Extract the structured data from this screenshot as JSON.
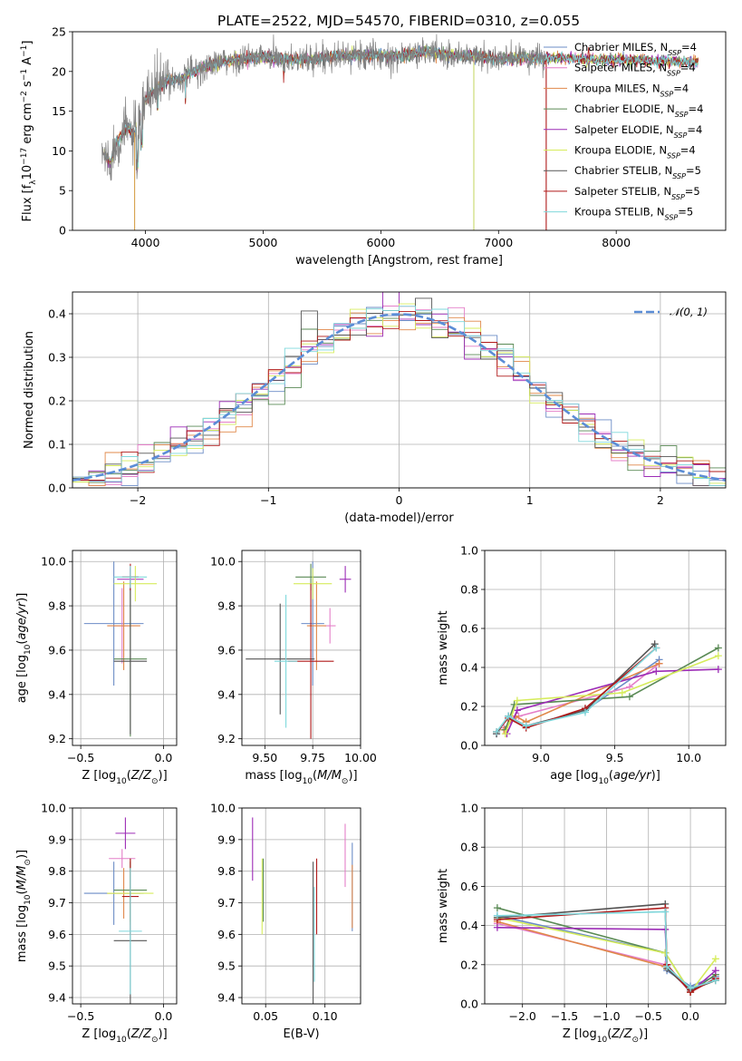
{
  "title": "PLATE=2522, MJD=54570, FIBERID=0310, z=0.055",
  "series": [
    {
      "name": "Chabrier MILES, N_SSP=4",
      "label_main": "Chabrier MILES, N",
      "label_sub": "SSP",
      "label_tail": "=4",
      "color": "#6b8cc6"
    },
    {
      "name": "Salpeter MILES, N_SSP=4",
      "label_main": "Salpeter MILES, N",
      "label_sub": "SSP",
      "label_tail": "=4",
      "color": "#e47fc8"
    },
    {
      "name": "Kroupa MILES, N_SSP=4",
      "label_main": "Kroupa MILES, N",
      "label_sub": "SSP",
      "label_tail": "=4",
      "color": "#e0884a"
    },
    {
      "name": "Chabrier ELODIE, N_SSP=4",
      "label_main": "Chabrier ELODIE, N",
      "label_sub": "SSP",
      "label_tail": "=4",
      "color": "#5a8a55"
    },
    {
      "name": "Salpeter ELODIE, N_SSP=4",
      "label_main": "Salpeter ELODIE, N",
      "label_sub": "SSP",
      "label_tail": "=4",
      "color": "#9c2cb6"
    },
    {
      "name": "Kroupa ELODIE, N_SSP=4",
      "label_main": "Kroupa ELODIE, N",
      "label_sub": "SSP",
      "label_tail": "=4",
      "color": "#d6ec5c"
    },
    {
      "name": "Chabrier STELIB, N_SSP=5",
      "label_main": "Chabrier STELIB, N",
      "label_sub": "SSP",
      "label_tail": "=5",
      "color": "#555555"
    },
    {
      "name": "Salpeter STELIB, N_SSP=5",
      "label_main": "Salpeter STELIB, N",
      "label_sub": "SSP",
      "label_tail": "=5",
      "color": "#b01a1a"
    },
    {
      "name": "Kroupa STELIB, N_SSP=5",
      "label_main": "Kroupa STELIB, N",
      "label_sub": "SSP",
      "label_tail": "=5",
      "color": "#7fd8dc"
    }
  ],
  "chart_data": [
    {
      "type": "line",
      "title": "PLATE=2522, MJD=54570, FIBERID=0310, z=0.055",
      "xlabel": "wavelength [Angstrom, rest frame]",
      "ylabel": "Flux [f_λ 10^-17 erg cm^-2 s^-1 A^-1]",
      "xlim": [
        3380,
        8930
      ],
      "ylim": [
        0,
        25
      ],
      "xticks": [
        "4000",
        "5000",
        "6000",
        "7000",
        "8000"
      ],
      "yticks": [
        "0",
        "5",
        "10",
        "15",
        "20",
        "25"
      ],
      "data_spectrum": {
        "color": "#808080",
        "x": [
          3650,
          3700,
          3750,
          3800,
          3850,
          3900,
          3950,
          4000,
          4100,
          4200,
          4300,
          4400,
          4500,
          4600,
          4800,
          5000,
          5200,
          5400,
          5600,
          5800,
          6000,
          6200,
          6400,
          6600,
          6800,
          7000,
          7200,
          7400
        ],
        "y": [
          9.5,
          8.5,
          11,
          12,
          13,
          12,
          14,
          16.5,
          18,
          19,
          19,
          20,
          20.5,
          21,
          21.5,
          21.8,
          21.5,
          21.5,
          22,
          22,
          22,
          22,
          22.5,
          22,
          22,
          21.5,
          21.8,
          21.5
        ]
      },
      "model_extent_angstrom": [
        3650,
        8700
      ]
    },
    {
      "type": "line",
      "xlabel": "(data-model)/error",
      "ylabel": "Normed distribution",
      "xlim": [
        -2.5,
        2.5
      ],
      "ylim": [
        0,
        0.45
      ],
      "xticks": [
        "−2",
        "−1",
        "0",
        "1",
        "2"
      ],
      "yticks": [
        "0.0",
        "0.1",
        "0.2",
        "0.3",
        "0.4"
      ],
      "reference_curve": {
        "name": "𝒩(0, 1)",
        "label": "𝒩(0, 1)",
        "mean": 0,
        "sigma": 1,
        "color": "#5b8dd6"
      },
      "histogram_bin_width": 0.125,
      "histogram_range": [
        -2.5,
        2.5
      ]
    },
    {
      "type": "scatter",
      "xlabel": "Z [log10(Z/Z⊙)]",
      "ylabel": "age  [log10(age/yr)]",
      "xlim": [
        -0.55,
        0.08
      ],
      "ylim": [
        9.17,
        10.05
      ],
      "xticks": [
        "−0.5",
        "0.0"
      ],
      "yticks": [
        "9.2",
        "9.4",
        "9.6",
        "9.8",
        "10.0"
      ],
      "points": [
        {
          "series": 0,
          "x": -0.3,
          "y": 9.72,
          "xerr": 0.18,
          "yerr": 0.28
        },
        {
          "series": 1,
          "x": -0.25,
          "y": 9.71,
          "xerr": 0.05,
          "yerr": 0.17
        },
        {
          "series": 2,
          "x": -0.24,
          "y": 9.71,
          "xerr": 0.1,
          "yerr": 0.2
        },
        {
          "series": 3,
          "x": -0.2,
          "y": 9.56,
          "xerr": 0.1,
          "yerr": 0.35
        },
        {
          "series": 4,
          "x": -0.2,
          "y": 9.92,
          "xerr": 0.08,
          "yerr": 0.05
        },
        {
          "series": 5,
          "x": -0.17,
          "y": 9.9,
          "xerr": 0.13,
          "yerr": 0.08
        },
        {
          "series": 6,
          "x": -0.2,
          "y": 9.55,
          "xerr": 0.1,
          "yerr": 0.33
        },
        {
          "series": 7,
          "x": -0.2,
          "y": 9.93,
          "xerr": 0.05,
          "yerr": 0.06
        },
        {
          "series": 8,
          "x": -0.2,
          "y": 9.93,
          "xerr": 0.1,
          "yerr": 0.05
        }
      ]
    },
    {
      "type": "scatter",
      "xlabel": "mass [log10(M/M⊙)]",
      "ylabel": "",
      "xlim": [
        9.38,
        10.0
      ],
      "ylim": [
        9.17,
        10.05
      ],
      "xticks": [
        "9.50",
        "9.75",
        "10.00"
      ],
      "yticks": [
        "9.2",
        "9.4",
        "9.6",
        "9.8",
        "10.0"
      ],
      "points": [
        {
          "series": 0,
          "x": 9.75,
          "y": 9.72,
          "xerr": 0.06,
          "yerr": 0.28
        },
        {
          "series": 1,
          "x": 9.84,
          "y": 9.71,
          "xerr": 0.03,
          "yerr": 0.08
        },
        {
          "series": 2,
          "x": 9.77,
          "y": 9.71,
          "xerr": 0.05,
          "yerr": 0.2
        },
        {
          "series": 3,
          "x": 9.74,
          "y": 9.93,
          "xerr": 0.08,
          "yerr": 0.06
        },
        {
          "series": 4,
          "x": 9.92,
          "y": 9.92,
          "xerr": 0.03,
          "yerr": 0.06
        },
        {
          "series": 5,
          "x": 9.75,
          "y": 9.9,
          "xerr": 0.1,
          "yerr": 0.07
        },
        {
          "series": 6,
          "x": 9.58,
          "y": 9.56,
          "xerr": 0.18,
          "yerr": 0.25
        },
        {
          "series": 7,
          "x": 9.74,
          "y": 9.55,
          "xerr": 0.12,
          "yerr": 0.35
        },
        {
          "series": 8,
          "x": 9.61,
          "y": 9.55,
          "xerr": 0.06,
          "yerr": 0.3
        }
      ]
    },
    {
      "type": "line",
      "xlabel": "age  [log10(age/yr)]",
      "ylabel": "mass weight",
      "xlim": [
        8.62,
        10.25
      ],
      "ylim": [
        0,
        1.0
      ],
      "xticks": [
        "9.0",
        "9.5",
        "10.0"
      ],
      "yticks": [
        "0.0",
        "0.2",
        "0.4",
        "0.6",
        "0.8",
        "1.0"
      ],
      "lines": [
        {
          "series": 0,
          "x": [
            8.7,
            8.78,
            8.9,
            9.3,
            9.8
          ],
          "y": [
            0.06,
            0.15,
            0.1,
            0.18,
            0.44
          ]
        },
        {
          "series": 1,
          "x": [
            8.75,
            8.85,
            9.6,
            9.8
          ],
          "y": [
            0.09,
            0.15,
            0.3,
            0.42
          ]
        },
        {
          "series": 2,
          "x": [
            8.75,
            8.83,
            8.9,
            9.8
          ],
          "y": [
            0.08,
            0.15,
            0.12,
            0.42
          ]
        },
        {
          "series": 3,
          "x": [
            8.76,
            8.82,
            9.6,
            10.2
          ],
          "y": [
            0.08,
            0.21,
            0.25,
            0.5
          ]
        },
        {
          "series": 4,
          "x": [
            8.77,
            8.84,
            9.78,
            10.2
          ],
          "y": [
            0.06,
            0.18,
            0.38,
            0.39
          ]
        },
        {
          "series": 5,
          "x": [
            8.76,
            8.84,
            9.55,
            10.2
          ],
          "y": [
            0.06,
            0.23,
            0.27,
            0.46
          ]
        },
        {
          "series": 6,
          "x": [
            8.7,
            8.78,
            8.9,
            9.3,
            9.77
          ],
          "y": [
            0.06,
            0.15,
            0.1,
            0.18,
            0.52
          ]
        },
        {
          "series": 7,
          "x": [
            8.7,
            8.78,
            8.9,
            9.3,
            9.78
          ],
          "y": [
            0.07,
            0.14,
            0.09,
            0.19,
            0.5
          ]
        },
        {
          "series": 8,
          "x": [
            8.7,
            8.78,
            8.9,
            9.3,
            9.78
          ],
          "y": [
            0.07,
            0.15,
            0.1,
            0.17,
            0.5
          ]
        }
      ]
    },
    {
      "type": "scatter",
      "xlabel": "Z [log10(Z/Z⊙)]",
      "ylabel": "mass [log10(M/M⊙)]",
      "xlim": [
        -0.55,
        0.08
      ],
      "ylim": [
        9.38,
        10.0
      ],
      "xticks": [
        "−0.5",
        "0.0"
      ],
      "yticks": [
        "9.4",
        "9.5",
        "9.6",
        "9.7",
        "9.8",
        "9.9",
        "10.0"
      ],
      "points": [
        {
          "series": 0,
          "x": -0.3,
          "y": 9.73,
          "xerr": 0.18,
          "yerr": 0.1
        },
        {
          "series": 1,
          "x": -0.25,
          "y": 9.84,
          "xerr": 0.08,
          "yerr": 0.03
        },
        {
          "series": 2,
          "x": -0.24,
          "y": 9.73,
          "xerr": 0.1,
          "yerr": 0.08
        },
        {
          "series": 3,
          "x": -0.2,
          "y": 9.74,
          "xerr": 0.1,
          "yerr": 0.1
        },
        {
          "series": 4,
          "x": -0.23,
          "y": 9.92,
          "xerr": 0.06,
          "yerr": 0.05
        },
        {
          "series": 5,
          "x": -0.2,
          "y": 9.73,
          "xerr": 0.14,
          "yerr": 0.1
        },
        {
          "series": 6,
          "x": -0.2,
          "y": 9.58,
          "xerr": 0.1,
          "yerr": 0.25
        },
        {
          "series": 7,
          "x": -0.2,
          "y": 9.72,
          "xerr": 0.05,
          "yerr": 0.12
        },
        {
          "series": 8,
          "x": -0.2,
          "y": 9.61,
          "xerr": 0.07,
          "yerr": 0.2
        }
      ]
    },
    {
      "type": "scatter",
      "xlabel": "E(B-V)",
      "ylabel": "",
      "xlim": [
        0.03,
        0.13
      ],
      "ylim": [
        9.38,
        10.0
      ],
      "xticks": [
        "0.05",
        "0.10"
      ],
      "yticks": [
        "9.4",
        "9.5",
        "9.6",
        "9.7",
        "9.8",
        "9.9",
        "10.0"
      ],
      "points": [
        {
          "series": 0,
          "x": 0.123,
          "y": 9.75,
          "xerr": 0,
          "yerr": 0.14
        },
        {
          "series": 1,
          "x": 0.117,
          "y": 9.85,
          "xerr": 0,
          "yerr": 0.1
        },
        {
          "series": 2,
          "x": 0.123,
          "y": 9.72,
          "xerr": 0,
          "yerr": 0.1
        },
        {
          "series": 3,
          "x": 0.048,
          "y": 9.74,
          "xerr": 0,
          "yerr": 0.1
        },
        {
          "series": 4,
          "x": 0.039,
          "y": 9.87,
          "xerr": 0,
          "yerr": 0.1
        },
        {
          "series": 5,
          "x": 0.047,
          "y": 9.72,
          "xerr": 0,
          "yerr": 0.12
        },
        {
          "series": 6,
          "x": 0.09,
          "y": 9.6,
          "xerr": 0,
          "yerr": 0.23
        },
        {
          "series": 7,
          "x": 0.093,
          "y": 9.72,
          "xerr": 0,
          "yerr": 0.12
        },
        {
          "series": 8,
          "x": 0.091,
          "y": 9.6,
          "xerr": 0,
          "yerr": 0.15
        }
      ]
    },
    {
      "type": "line",
      "xlabel": "Z [log10(Z/Z⊙)]",
      "ylabel": "mass weight",
      "xlim": [
        -2.45,
        0.42
      ],
      "ylim": [
        0,
        1.0
      ],
      "xticks": [
        "−2.0",
        "−1.5",
        "−1.0",
        "−0.5",
        "0.0"
      ],
      "yticks": [
        "0.0",
        "0.2",
        "0.4",
        "0.6",
        "0.8",
        "1.0"
      ],
      "lines": [
        {
          "series": 0,
          "x": [
            -2.3,
            -0.3,
            -0.28,
            0,
            0.3
          ],
          "y": [
            0.45,
            0.26,
            0.17,
            0.09,
            0.14
          ]
        },
        {
          "series": 1,
          "x": [
            -2.3,
            -0.3,
            0,
            0.3
          ],
          "y": [
            0.41,
            0.2,
            0.06,
            0.13
          ]
        },
        {
          "series": 2,
          "x": [
            -2.3,
            -0.3,
            0,
            0.3
          ],
          "y": [
            0.42,
            0.19,
            0.07,
            0.12
          ]
        },
        {
          "series": 3,
          "x": [
            -2.3,
            -0.3,
            0,
            0.3
          ],
          "y": [
            0.49,
            0.26,
            0.06,
            0.15
          ]
        },
        {
          "series": 4,
          "x": [
            -2.3,
            -0.3,
            -0.28,
            0,
            0.3
          ],
          "y": [
            0.39,
            0.38,
            0.2,
            0.06,
            0.17
          ]
        },
        {
          "series": 5,
          "x": [
            -2.3,
            -0.3,
            0,
            0.3
          ],
          "y": [
            0.44,
            0.26,
            0.06,
            0.23
          ]
        },
        {
          "series": 6,
          "x": [
            -2.3,
            -0.3,
            -0.28,
            0,
            0.3
          ],
          "y": [
            0.44,
            0.51,
            0.18,
            0.07,
            0.12
          ]
        },
        {
          "series": 7,
          "x": [
            -2.3,
            -0.3,
            -0.28,
            0,
            0.3
          ],
          "y": [
            0.43,
            0.49,
            0.2,
            0.06,
            0.13
          ]
        },
        {
          "series": 8,
          "x": [
            -2.3,
            -0.3,
            -0.28,
            0,
            0.3
          ],
          "y": [
            0.45,
            0.47,
            0.19,
            0.08,
            0.12
          ]
        }
      ]
    }
  ]
}
